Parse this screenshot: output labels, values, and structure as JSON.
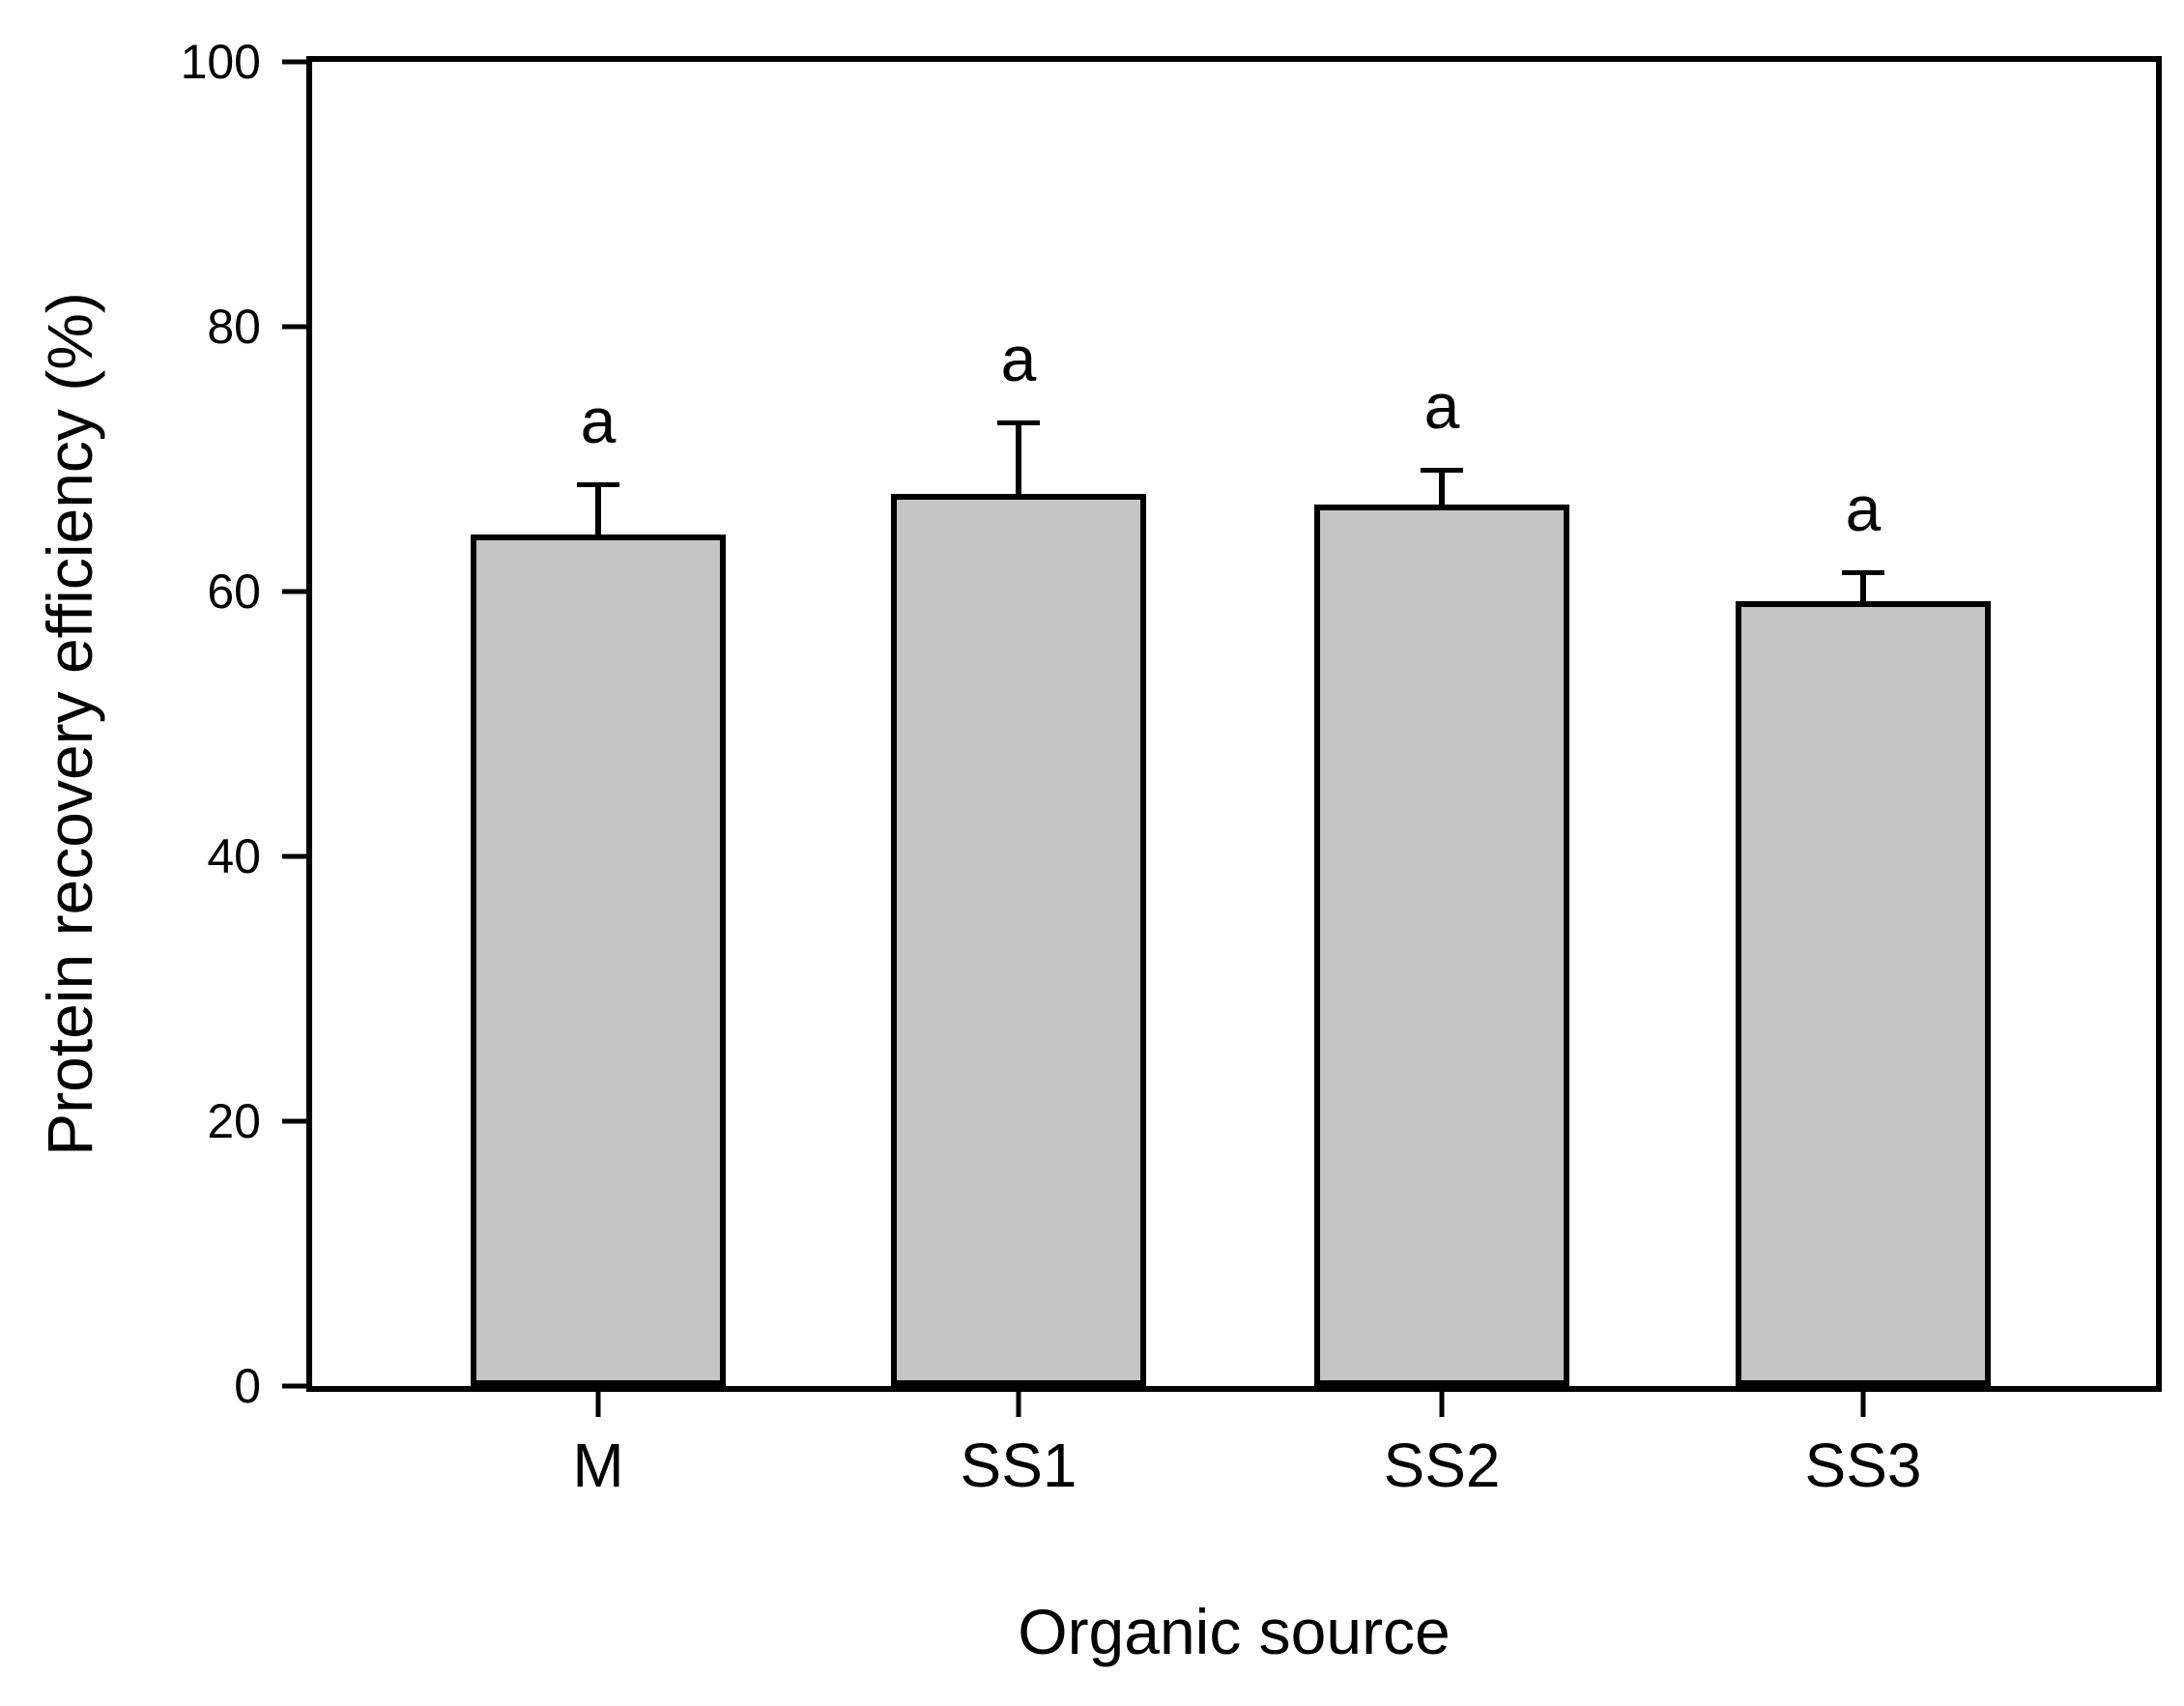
{
  "figure": {
    "background_color": "#ffffff",
    "text_color": "#000000"
  },
  "chart": {
    "y_axis": {
      "title": "Protein recovery efficiency (%)",
      "min": 0,
      "max": 100,
      "ticks": [
        0,
        20,
        40,
        60,
        80,
        100
      ]
    },
    "x_axis": {
      "title": "Organic source",
      "categories": [
        "M",
        "SS1",
        "SS2",
        "SS3"
      ]
    }
  },
  "chart_data": {
    "type": "bar",
    "categories": [
      "M",
      "SS1",
      "SS2",
      "SS3"
    ],
    "values": [
      64.3,
      67.4,
      66.6,
      59.3
    ],
    "error_up": [
      3.7,
      5.3,
      2.5,
      2.1
    ],
    "significance_letters": [
      "a",
      "a",
      "a",
      "a"
    ],
    "title": "",
    "xlabel": "Organic source",
    "ylabel": "Protein recovery efficiency (%)",
    "ylim": [
      0,
      100
    ],
    "grid": false,
    "legend": "none",
    "bar_fill": "#c4c4c4",
    "bar_border": "#000000",
    "axis_color": "#000000"
  }
}
